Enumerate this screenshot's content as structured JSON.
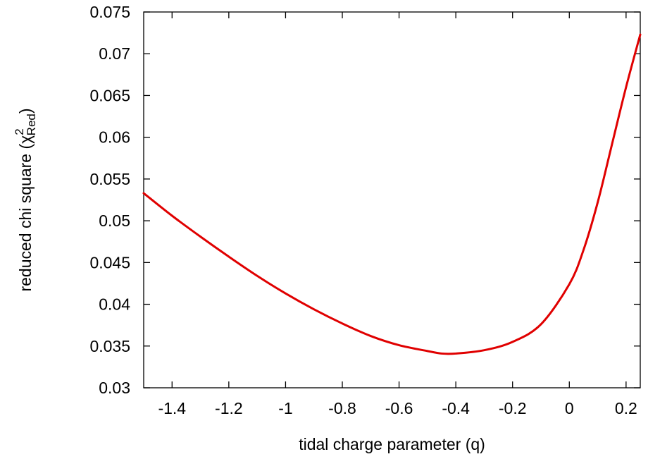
{
  "chart_data": {
    "type": "line",
    "title": "",
    "xlabel": "tidal charge parameter (q)",
    "ylabel_prefix": "reduced chi square (",
    "ylabel_symbol": "χ",
    "ylabel_superscript": "2",
    "ylabel_subscript": "Red",
    "ylabel_suffix": ")",
    "xlim": [
      -1.5,
      0.25
    ],
    "ylim": [
      0.03,
      0.075
    ],
    "xticks": [
      -1.4,
      -1.2,
      -1.0,
      -0.8,
      -0.6,
      -0.4,
      -0.2,
      0,
      0.2
    ],
    "xtick_labels": [
      "-1.4",
      "-1.2",
      "-1",
      "-0.8",
      "-0.6",
      "-0.4",
      "-0.2",
      "0",
      "0.2"
    ],
    "yticks": [
      0.03,
      0.035,
      0.04,
      0.045,
      0.05,
      0.055,
      0.06,
      0.065,
      0.07,
      0.075
    ],
    "ytick_labels": [
      "0.03",
      "0.035",
      "0.04",
      "0.045",
      "0.05",
      "0.055",
      "0.06",
      "0.065",
      "0.07",
      "0.075"
    ],
    "grid": false,
    "series": [
      {
        "color": "#e00000",
        "x": [
          -1.5,
          -1.4,
          -1.3,
          -1.2,
          -1.1,
          -1.0,
          -0.9,
          -0.8,
          -0.7,
          -0.6,
          -0.5,
          -0.45,
          -0.4,
          -0.3,
          -0.2,
          -0.1,
          0,
          0.05,
          0.1,
          0.15,
          0.2,
          0.25
        ],
        "y": [
          0.0533,
          0.0506,
          0.0481,
          0.0457,
          0.0434,
          0.0413,
          0.0394,
          0.0377,
          0.0362,
          0.0351,
          0.0344,
          0.0341,
          0.0341,
          0.0345,
          0.0355,
          0.0376,
          0.0424,
          0.0465,
          0.0522,
          0.0591,
          0.066,
          0.0723
        ]
      }
    ]
  }
}
